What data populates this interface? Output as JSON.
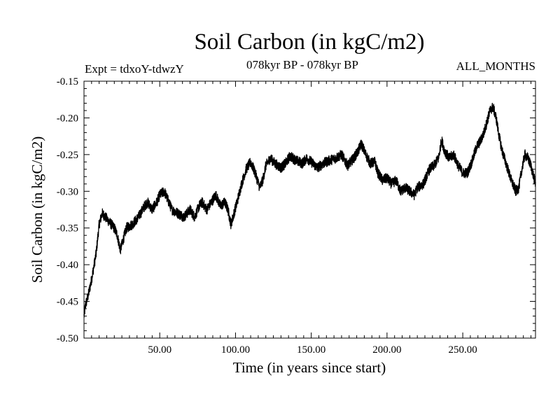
{
  "header": {
    "title": "Soil Carbon (in kgC/m2)",
    "expt": "Expt = tdxoY-tdwzY",
    "period": "078kyr BP - 078kyr BP",
    "months": "ALL_MONTHS"
  },
  "chart_data": {
    "type": "line",
    "title": "Soil Carbon (in kgC/m2)",
    "xlabel": "Time (in years since start)",
    "ylabel": "Soil Carbon (in kgC/m2)",
    "xlim": [
      0,
      298
    ],
    "ylim": [
      -0.5,
      -0.15
    ],
    "x_ticks": [
      50,
      100,
      150,
      200,
      250
    ],
    "x_tick_labels": [
      "50.00",
      "100.00",
      "150.00",
      "200.00",
      "250.00"
    ],
    "y_ticks": [
      -0.15,
      -0.2,
      -0.25,
      -0.3,
      -0.35,
      -0.4,
      -0.45,
      -0.5
    ],
    "y_tick_labels": [
      "-0.15",
      "-0.20",
      "-0.25",
      "-0.30",
      "-0.35",
      "-0.40",
      "-0.45",
      "-0.50"
    ],
    "grid": false,
    "series": [
      {
        "color": "#000000",
        "noise_amplitude": 0.007,
        "points": [
          [
            0,
            -0.47
          ],
          [
            1,
            -0.455
          ],
          [
            3,
            -0.44
          ],
          [
            5,
            -0.42
          ],
          [
            8,
            -0.385
          ],
          [
            10,
            -0.345
          ],
          [
            12,
            -0.33
          ],
          [
            14,
            -0.335
          ],
          [
            16,
            -0.34
          ],
          [
            18,
            -0.345
          ],
          [
            20,
            -0.35
          ],
          [
            22,
            -0.36
          ],
          [
            24,
            -0.38
          ],
          [
            26,
            -0.365
          ],
          [
            28,
            -0.35
          ],
          [
            32,
            -0.345
          ],
          [
            36,
            -0.335
          ],
          [
            40,
            -0.32
          ],
          [
            42,
            -0.315
          ],
          [
            45,
            -0.325
          ],
          [
            48,
            -0.315
          ],
          [
            50,
            -0.305
          ],
          [
            53,
            -0.3
          ],
          [
            56,
            -0.315
          ],
          [
            58,
            -0.325
          ],
          [
            62,
            -0.33
          ],
          [
            66,
            -0.335
          ],
          [
            70,
            -0.325
          ],
          [
            73,
            -0.335
          ],
          [
            76,
            -0.32
          ],
          [
            78,
            -0.315
          ],
          [
            81,
            -0.325
          ],
          [
            84,
            -0.315
          ],
          [
            87,
            -0.305
          ],
          [
            90,
            -0.32
          ],
          [
            93,
            -0.315
          ],
          [
            95,
            -0.325
          ],
          [
            97,
            -0.345
          ],
          [
            99,
            -0.33
          ],
          [
            101,
            -0.315
          ],
          [
            104,
            -0.29
          ],
          [
            107,
            -0.27
          ],
          [
            110,
            -0.26
          ],
          [
            113,
            -0.275
          ],
          [
            116,
            -0.295
          ],
          [
            118,
            -0.285
          ],
          [
            120,
            -0.265
          ],
          [
            123,
            -0.255
          ],
          [
            126,
            -0.262
          ],
          [
            130,
            -0.268
          ],
          [
            133,
            -0.262
          ],
          [
            136,
            -0.252
          ],
          [
            140,
            -0.258
          ],
          [
            144,
            -0.262
          ],
          [
            147,
            -0.255
          ],
          [
            150,
            -0.26
          ],
          [
            154,
            -0.268
          ],
          [
            158,
            -0.262
          ],
          [
            162,
            -0.258
          ],
          [
            166,
            -0.255
          ],
          [
            170,
            -0.25
          ],
          [
            174,
            -0.265
          ],
          [
            178,
            -0.255
          ],
          [
            181,
            -0.245
          ],
          [
            183,
            -0.235
          ],
          [
            186,
            -0.25
          ],
          [
            189,
            -0.262
          ],
          [
            192,
            -0.26
          ],
          [
            194,
            -0.275
          ],
          [
            197,
            -0.285
          ],
          [
            200,
            -0.282
          ],
          [
            203,
            -0.29
          ],
          [
            206,
            -0.285
          ],
          [
            209,
            -0.3
          ],
          [
            212,
            -0.295
          ],
          [
            215,
            -0.3
          ],
          [
            218,
            -0.305
          ],
          [
            220,
            -0.295
          ],
          [
            224,
            -0.29
          ],
          [
            228,
            -0.27
          ],
          [
            231,
            -0.265
          ],
          [
            234,
            -0.255
          ],
          [
            236,
            -0.23
          ],
          [
            238,
            -0.245
          ],
          [
            241,
            -0.255
          ],
          [
            244,
            -0.25
          ],
          [
            247,
            -0.265
          ],
          [
            250,
            -0.275
          ],
          [
            253,
            -0.275
          ],
          [
            256,
            -0.26
          ],
          [
            259,
            -0.24
          ],
          [
            262,
            -0.23
          ],
          [
            264,
            -0.22
          ],
          [
            266,
            -0.205
          ],
          [
            268,
            -0.19
          ],
          [
            270,
            -0.185
          ],
          [
            272,
            -0.2
          ],
          [
            274,
            -0.225
          ],
          [
            276,
            -0.245
          ],
          [
            279,
            -0.265
          ],
          [
            282,
            -0.285
          ],
          [
            285,
            -0.3
          ],
          [
            287,
            -0.295
          ],
          [
            289,
            -0.27
          ],
          [
            291,
            -0.25
          ],
          [
            293,
            -0.255
          ],
          [
            295,
            -0.265
          ],
          [
            298,
            -0.29
          ]
        ]
      }
    ]
  }
}
